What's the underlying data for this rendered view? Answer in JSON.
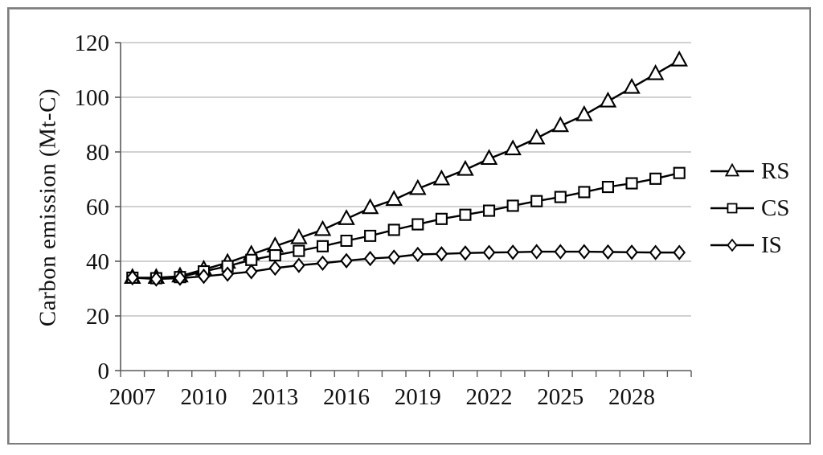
{
  "figure": {
    "background": "#ffffff",
    "border_color": "#7d7d7d"
  },
  "chart_data": {
    "type": "line",
    "title": "",
    "xlabel": "",
    "ylabel": "Carbon emission (Mt-C)",
    "ylim": [
      0,
      120
    ],
    "ytick_step": 20,
    "grid": "horizontal",
    "legend_position": "right",
    "x": [
      2007,
      2008,
      2009,
      2010,
      2011,
      2012,
      2013,
      2014,
      2015,
      2016,
      2017,
      2018,
      2019,
      2020,
      2021,
      2022,
      2023,
      2024,
      2025,
      2026,
      2027,
      2028,
      2029,
      2030
    ],
    "xtick_every": 3,
    "xtick_labels": [
      "2007",
      "2010",
      "2013",
      "2016",
      "2019",
      "2022",
      "2025",
      "2028"
    ],
    "series": [
      {
        "name": "RS",
        "marker": "triangle",
        "color": "#000000",
        "values": [
          34.0,
          34.0,
          34.5,
          37.0,
          39.5,
          42.5,
          45.5,
          48.5,
          51.5,
          55.5,
          59.5,
          62.5,
          66.5,
          70.0,
          73.5,
          77.5,
          81.0,
          85.0,
          89.5,
          93.5,
          98.5,
          103.5,
          108.5,
          113.5
        ]
      },
      {
        "name": "CS",
        "marker": "square",
        "color": "#000000",
        "values": [
          34.0,
          33.8,
          34.2,
          36.3,
          38.2,
          40.5,
          42.2,
          43.8,
          45.5,
          47.5,
          49.3,
          51.5,
          53.5,
          55.5,
          57.0,
          58.5,
          60.3,
          62.0,
          63.5,
          65.3,
          67.2,
          68.5,
          70.2,
          72.3
        ]
      },
      {
        "name": "IS",
        "marker": "diamond",
        "color": "#000000",
        "values": [
          34.0,
          33.5,
          33.8,
          34.5,
          35.3,
          36.2,
          37.5,
          38.5,
          39.3,
          40.2,
          41.0,
          41.5,
          42.5,
          42.7,
          43.0,
          43.2,
          43.3,
          43.5,
          43.5,
          43.5,
          43.4,
          43.3,
          43.2,
          43.2
        ]
      }
    ],
    "colors": {
      "grid": "#c2c2c2",
      "axis": "#5a5a5a",
      "text": "#111111",
      "marker_fill": "#ffffff"
    }
  }
}
